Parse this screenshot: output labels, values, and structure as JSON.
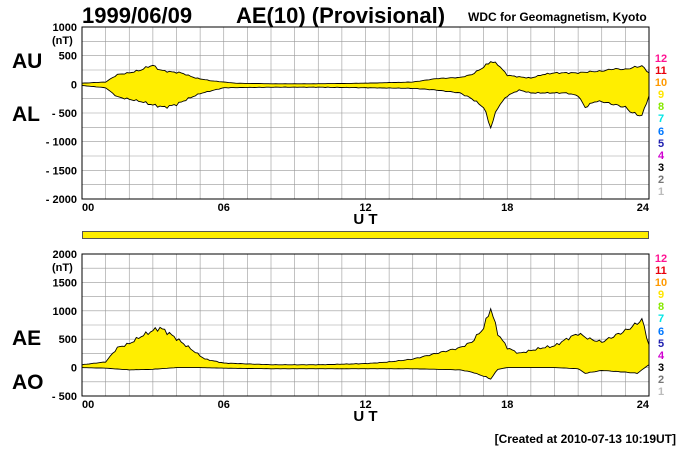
{
  "header": {
    "date": "1999/06/09",
    "title": "AE(10) (Provisional)",
    "source": "WDC for Geomagnetism, Kyoto"
  },
  "footer": {
    "created": "[Created at 2010-07-13 10:19UT]"
  },
  "panels": {
    "upper": {
      "label_top": "AU",
      "label_bottom": "AL",
      "units": "(nT)"
    },
    "lower": {
      "label_top": "AE",
      "label_bottom": "AO",
      "units": "(nT)"
    }
  },
  "legend": {
    "items": [
      {
        "label": "12",
        "color": "#ff1493"
      },
      {
        "label": "11",
        "color": "#e8000b"
      },
      {
        "label": "10",
        "color": "#ff9a00"
      },
      {
        "label": "9",
        "color": "#ffe600"
      },
      {
        "label": "8",
        "color": "#88e800"
      },
      {
        "label": "7",
        "color": "#00e5e5"
      },
      {
        "label": "6",
        "color": "#0077ff"
      },
      {
        "label": "5",
        "color": "#2020b0"
      },
      {
        "label": "4",
        "color": "#d000d0"
      },
      {
        "label": "3",
        "color": "#000000"
      },
      {
        "label": "2",
        "color": "#777777"
      },
      {
        "label": "1",
        "color": "#bbbbbb"
      }
    ]
  },
  "colors": {
    "fill": "#ffee00",
    "grid": "#999999",
    "outline": "#000000"
  },
  "chart_data": [
    {
      "type": "area",
      "title": "",
      "xlabel": "U T",
      "ylabel": "(nT)",
      "xlim": [
        0,
        24
      ],
      "ylim": [
        -2000,
        1000
      ],
      "x_ticks": [
        0,
        6,
        12,
        18,
        24
      ],
      "x_tick_labels": [
        "00",
        "06",
        "12",
        "18",
        "24"
      ],
      "y_ticks": [
        1000,
        500,
        0,
        -500,
        -1000,
        -1500,
        -2000
      ],
      "y_tick_labels": [
        "1000",
        "500",
        "0",
        "- 500",
        "- 1000",
        "- 1500",
        "- 2000"
      ],
      "grid": true,
      "series": [
        {
          "name": "AU",
          "x": [
            0,
            1,
            1.5,
            2,
            2.5,
            2.8,
            3.0,
            3.3,
            3.7,
            4.2,
            4.8,
            5.5,
            6.5,
            8,
            10,
            12,
            14,
            14.5,
            15,
            16,
            16.5,
            17.0,
            17.3,
            17.6,
            18.0,
            18.5,
            19,
            19.5,
            20,
            20.5,
            21,
            21.5,
            22,
            22.5,
            23,
            23.4,
            23.7,
            24
          ],
          "values": [
            20,
            40,
            170,
            200,
            250,
            310,
            330,
            250,
            220,
            200,
            110,
            60,
            20,
            10,
            10,
            20,
            40,
            70,
            100,
            120,
            170,
            300,
            400,
            350,
            160,
            130,
            110,
            170,
            200,
            200,
            200,
            220,
            230,
            270,
            260,
            300,
            320,
            200
          ]
        },
        {
          "name": "AL",
          "x": [
            0,
            1,
            1.5,
            2,
            2.5,
            3.0,
            3.5,
            4.0,
            4.5,
            5.0,
            6,
            8,
            10,
            12,
            14,
            15.0,
            16.0,
            16.5,
            17.0,
            17.3,
            17.6,
            18.0,
            18.5,
            19.0,
            19.5,
            20.0,
            20.5,
            21.0,
            21.3,
            21.7,
            22.0,
            22.5,
            23.0,
            23.3,
            23.7,
            24
          ],
          "values": [
            -20,
            -60,
            -220,
            -260,
            -300,
            -360,
            -400,
            -350,
            -250,
            -160,
            -60,
            -50,
            -50,
            -60,
            -70,
            -100,
            -150,
            -250,
            -400,
            -750,
            -400,
            -200,
            -100,
            -150,
            -150,
            -150,
            -150,
            -200,
            -400,
            -300,
            -300,
            -350,
            -400,
            -500,
            -550,
            -200
          ]
        }
      ]
    },
    {
      "type": "area",
      "title": "",
      "xlabel": "U T",
      "ylabel": "(nT)",
      "xlim": [
        0,
        24
      ],
      "ylim": [
        -500,
        2000
      ],
      "x_ticks": [
        0,
        6,
        12,
        18,
        24
      ],
      "x_tick_labels": [
        "00",
        "06",
        "12",
        "18",
        "24"
      ],
      "y_ticks": [
        2000,
        1500,
        1000,
        500,
        0,
        -500
      ],
      "y_tick_labels": [
        "2000",
        "1500",
        "1000",
        "500",
        "0",
        "- 500"
      ],
      "grid": true,
      "series": [
        {
          "name": "AE",
          "x": [
            0,
            1,
            1.5,
            2,
            2.5,
            3.0,
            3.3,
            3.7,
            4.2,
            4.7,
            5.2,
            6,
            8,
            10,
            12,
            13,
            14,
            15,
            16,
            16.5,
            17.0,
            17.3,
            17.6,
            18.0,
            18.5,
            19.0,
            19.5,
            20,
            20.5,
            21,
            21.5,
            22,
            22.5,
            23,
            23.4,
            23.7,
            24
          ],
          "values": [
            50,
            100,
            350,
            420,
            550,
            650,
            700,
            600,
            450,
            300,
            150,
            80,
            50,
            50,
            70,
            100,
            150,
            250,
            350,
            450,
            700,
            1050,
            600,
            350,
            250,
            300,
            350,
            380,
            500,
            600,
            500,
            450,
            550,
            650,
            750,
            850,
            400
          ]
        },
        {
          "name": "AO",
          "x": [
            0,
            1,
            2,
            3,
            4,
            5,
            6,
            8,
            10,
            12,
            14,
            16,
            16.5,
            17.0,
            17.3,
            17.6,
            18.0,
            19,
            20,
            21,
            21.3,
            22,
            23,
            23.5,
            24
          ],
          "values": [
            0,
            -10,
            -40,
            -30,
            0,
            0,
            -10,
            -20,
            -20,
            -20,
            -20,
            -40,
            -80,
            -150,
            -200,
            -30,
            0,
            0,
            0,
            -20,
            -100,
            -50,
            -80,
            -100,
            50
          ]
        }
      ]
    }
  ]
}
